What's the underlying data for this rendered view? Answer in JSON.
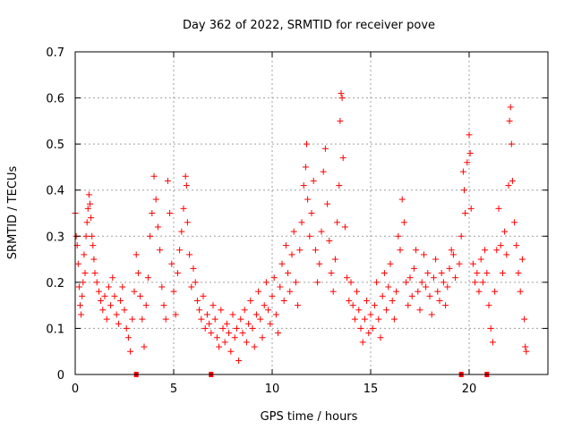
{
  "chart_data": {
    "type": "scatter",
    "title": "Day 362 of 2022, SRMTID for receiver pove",
    "xlabel": "GPS time / hours",
    "ylabel": "SRMTID / TECUs",
    "xlim": [
      0,
      24
    ],
    "ylim": [
      0,
      0.7
    ],
    "xticks": [
      0,
      5,
      10,
      15,
      20
    ],
    "xtick_labels": [
      "0",
      "5",
      "10",
      "15",
      "20"
    ],
    "yticks": [
      0,
      0.1,
      0.2,
      0.3,
      0.4,
      0.5,
      0.6,
      0.7
    ],
    "ytick_labels": [
      "0",
      "0.1",
      "0.2",
      "0.3",
      "0.4",
      "0.5",
      "0.6",
      "0.7"
    ],
    "grid": true,
    "marker": "+",
    "color": "#ff0000",
    "gap_markers_x": [
      3.1,
      6.9,
      19.6,
      20.9
    ],
    "series": [
      {
        "name": "SRMTID",
        "points": [
          [
            0.0,
            0.35
          ],
          [
            0.05,
            0.3
          ],
          [
            0.1,
            0.28
          ],
          [
            0.15,
            0.24
          ],
          [
            0.2,
            0.19
          ],
          [
            0.25,
            0.15
          ],
          [
            0.3,
            0.13
          ],
          [
            0.35,
            0.17
          ],
          [
            0.4,
            0.2
          ],
          [
            0.45,
            0.26
          ],
          [
            0.5,
            0.22
          ],
          [
            0.55,
            0.3
          ],
          [
            0.6,
            0.33
          ],
          [
            0.65,
            0.36
          ],
          [
            0.7,
            0.39
          ],
          [
            0.75,
            0.37
          ],
          [
            0.8,
            0.34
          ],
          [
            0.85,
            0.3
          ],
          [
            0.9,
            0.28
          ],
          [
            0.95,
            0.25
          ],
          [
            1.0,
            0.22
          ],
          [
            1.1,
            0.2
          ],
          [
            1.2,
            0.18
          ],
          [
            1.3,
            0.16
          ],
          [
            1.4,
            0.14
          ],
          [
            1.5,
            0.17
          ],
          [
            1.6,
            0.12
          ],
          [
            1.7,
            0.19
          ],
          [
            1.8,
            0.15
          ],
          [
            1.9,
            0.21
          ],
          [
            2.0,
            0.17
          ],
          [
            2.1,
            0.13
          ],
          [
            2.2,
            0.11
          ],
          [
            2.3,
            0.16
          ],
          [
            2.4,
            0.19
          ],
          [
            2.5,
            0.14
          ],
          [
            2.6,
            0.1
          ],
          [
            2.7,
            0.08
          ],
          [
            2.8,
            0.05
          ],
          [
            2.9,
            0.12
          ],
          [
            3.0,
            0.18
          ],
          [
            3.1,
            0.26
          ],
          [
            3.2,
            0.22
          ],
          [
            3.3,
            0.17
          ],
          [
            3.4,
            0.12
          ],
          [
            3.5,
            0.06
          ],
          [
            3.6,
            0.15
          ],
          [
            3.7,
            0.21
          ],
          [
            3.8,
            0.3
          ],
          [
            3.9,
            0.35
          ],
          [
            4.0,
            0.43
          ],
          [
            4.1,
            0.38
          ],
          [
            4.2,
            0.32
          ],
          [
            4.3,
            0.27
          ],
          [
            4.4,
            0.19
          ],
          [
            4.5,
            0.15
          ],
          [
            4.6,
            0.12
          ],
          [
            4.7,
            0.42
          ],
          [
            4.8,
            0.35
          ],
          [
            4.9,
            0.24
          ],
          [
            5.0,
            0.18
          ],
          [
            5.1,
            0.13
          ],
          [
            5.2,
            0.22
          ],
          [
            5.3,
            0.27
          ],
          [
            5.4,
            0.31
          ],
          [
            5.5,
            0.36
          ],
          [
            5.6,
            0.43
          ],
          [
            5.65,
            0.41
          ],
          [
            5.7,
            0.33
          ],
          [
            5.8,
            0.26
          ],
          [
            5.9,
            0.19
          ],
          [
            6.0,
            0.23
          ],
          [
            6.1,
            0.2
          ],
          [
            6.2,
            0.16
          ],
          [
            6.3,
            0.14
          ],
          [
            6.4,
            0.12
          ],
          [
            6.5,
            0.17
          ],
          [
            6.6,
            0.1
          ],
          [
            6.7,
            0.13
          ],
          [
            6.8,
            0.11
          ],
          [
            6.9,
            0.09
          ],
          [
            7.0,
            0.15
          ],
          [
            7.1,
            0.12
          ],
          [
            7.2,
            0.08
          ],
          [
            7.3,
            0.06
          ],
          [
            7.4,
            0.14
          ],
          [
            7.5,
            0.1
          ],
          [
            7.6,
            0.07
          ],
          [
            7.7,
            0.11
          ],
          [
            7.8,
            0.09
          ],
          [
            7.9,
            0.05
          ],
          [
            8.0,
            0.13
          ],
          [
            8.1,
            0.08
          ],
          [
            8.2,
            0.1
          ],
          [
            8.3,
            0.03
          ],
          [
            8.4,
            0.12
          ],
          [
            8.5,
            0.09
          ],
          [
            8.6,
            0.14
          ],
          [
            8.7,
            0.07
          ],
          [
            8.8,
            0.11
          ],
          [
            8.9,
            0.16
          ],
          [
            9.0,
            0.1
          ],
          [
            9.1,
            0.06
          ],
          [
            9.2,
            0.13
          ],
          [
            9.3,
            0.18
          ],
          [
            9.4,
            0.12
          ],
          [
            9.5,
            0.08
          ],
          [
            9.6,
            0.15
          ],
          [
            9.7,
            0.2
          ],
          [
            9.8,
            0.14
          ],
          [
            9.9,
            0.11
          ],
          [
            10.0,
            0.17
          ],
          [
            10.1,
            0.21
          ],
          [
            10.2,
            0.13
          ],
          [
            10.3,
            0.09
          ],
          [
            10.4,
            0.19
          ],
          [
            10.5,
            0.24
          ],
          [
            10.6,
            0.16
          ],
          [
            10.7,
            0.28
          ],
          [
            10.8,
            0.22
          ],
          [
            10.9,
            0.18
          ],
          [
            11.0,
            0.26
          ],
          [
            11.1,
            0.31
          ],
          [
            11.2,
            0.2
          ],
          [
            11.3,
            0.15
          ],
          [
            11.4,
            0.27
          ],
          [
            11.5,
            0.33
          ],
          [
            11.6,
            0.41
          ],
          [
            11.7,
            0.45
          ],
          [
            11.75,
            0.5
          ],
          [
            11.8,
            0.38
          ],
          [
            11.9,
            0.3
          ],
          [
            12.0,
            0.35
          ],
          [
            12.1,
            0.42
          ],
          [
            12.2,
            0.27
          ],
          [
            12.3,
            0.2
          ],
          [
            12.4,
            0.24
          ],
          [
            12.5,
            0.31
          ],
          [
            12.6,
            0.44
          ],
          [
            12.7,
            0.49
          ],
          [
            12.8,
            0.37
          ],
          [
            12.9,
            0.29
          ],
          [
            13.0,
            0.22
          ],
          [
            13.1,
            0.18
          ],
          [
            13.2,
            0.25
          ],
          [
            13.3,
            0.33
          ],
          [
            13.4,
            0.41
          ],
          [
            13.45,
            0.55
          ],
          [
            13.5,
            0.61
          ],
          [
            13.55,
            0.6
          ],
          [
            13.6,
            0.47
          ],
          [
            13.7,
            0.32
          ],
          [
            13.8,
            0.21
          ],
          [
            13.9,
            0.16
          ],
          [
            14.0,
            0.2
          ],
          [
            14.1,
            0.15
          ],
          [
            14.2,
            0.12
          ],
          [
            14.3,
            0.18
          ],
          [
            14.4,
            0.14
          ],
          [
            14.5,
            0.1
          ],
          [
            14.6,
            0.07
          ],
          [
            14.7,
            0.12
          ],
          [
            14.8,
            0.16
          ],
          [
            14.9,
            0.09
          ],
          [
            15.0,
            0.13
          ],
          [
            15.1,
            0.1
          ],
          [
            15.2,
            0.15
          ],
          [
            15.3,
            0.2
          ],
          [
            15.4,
            0.12
          ],
          [
            15.5,
            0.08
          ],
          [
            15.6,
            0.17
          ],
          [
            15.7,
            0.22
          ],
          [
            15.8,
            0.14
          ],
          [
            15.9,
            0.19
          ],
          [
            16.0,
            0.24
          ],
          [
            16.1,
            0.16
          ],
          [
            16.2,
            0.12
          ],
          [
            16.3,
            0.18
          ],
          [
            16.4,
            0.3
          ],
          [
            16.5,
            0.27
          ],
          [
            16.6,
            0.38
          ],
          [
            16.7,
            0.33
          ],
          [
            16.8,
            0.2
          ],
          [
            16.9,
            0.15
          ],
          [
            17.0,
            0.21
          ],
          [
            17.1,
            0.17
          ],
          [
            17.2,
            0.23
          ],
          [
            17.3,
            0.27
          ],
          [
            17.4,
            0.18
          ],
          [
            17.5,
            0.14
          ],
          [
            17.6,
            0.2
          ],
          [
            17.7,
            0.26
          ],
          [
            17.8,
            0.19
          ],
          [
            17.9,
            0.22
          ],
          [
            18.0,
            0.17
          ],
          [
            18.1,
            0.13
          ],
          [
            18.2,
            0.21
          ],
          [
            18.3,
            0.25
          ],
          [
            18.4,
            0.18
          ],
          [
            18.5,
            0.16
          ],
          [
            18.6,
            0.22
          ],
          [
            18.7,
            0.2
          ],
          [
            18.8,
            0.15
          ],
          [
            18.9,
            0.19
          ],
          [
            19.0,
            0.23
          ],
          [
            19.1,
            0.27
          ],
          [
            19.2,
            0.26
          ],
          [
            19.3,
            0.21
          ],
          [
            19.5,
            0.24
          ],
          [
            19.6,
            0.3
          ],
          [
            19.7,
            0.44
          ],
          [
            19.75,
            0.4
          ],
          [
            19.8,
            0.35
          ],
          [
            19.9,
            0.46
          ],
          [
            20.0,
            0.52
          ],
          [
            20.05,
            0.48
          ],
          [
            20.1,
            0.36
          ],
          [
            20.2,
            0.24
          ],
          [
            20.3,
            0.2
          ],
          [
            20.4,
            0.22
          ],
          [
            20.5,
            0.18
          ],
          [
            20.6,
            0.25
          ],
          [
            20.7,
            0.2
          ],
          [
            20.8,
            0.27
          ],
          [
            20.9,
            0.22
          ],
          [
            21.0,
            0.15
          ],
          [
            21.1,
            0.1
          ],
          [
            21.2,
            0.07
          ],
          [
            21.3,
            0.18
          ],
          [
            21.4,
            0.27
          ],
          [
            21.5,
            0.36
          ],
          [
            21.6,
            0.28
          ],
          [
            21.7,
            0.22
          ],
          [
            21.8,
            0.31
          ],
          [
            21.9,
            0.26
          ],
          [
            22.0,
            0.41
          ],
          [
            22.05,
            0.55
          ],
          [
            22.1,
            0.58
          ],
          [
            22.15,
            0.5
          ],
          [
            22.2,
            0.42
          ],
          [
            22.3,
            0.33
          ],
          [
            22.4,
            0.28
          ],
          [
            22.5,
            0.22
          ],
          [
            22.6,
            0.18
          ],
          [
            22.7,
            0.25
          ],
          [
            22.8,
            0.12
          ],
          [
            22.85,
            0.06
          ],
          [
            22.9,
            0.05
          ]
        ]
      }
    ]
  }
}
